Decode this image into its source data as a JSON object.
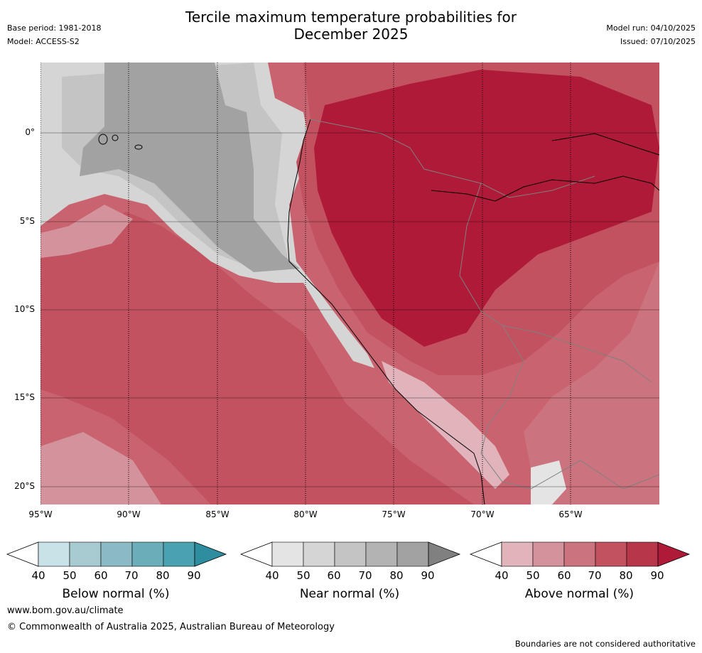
{
  "header": {
    "title_line1": "Tercile maximum temperature probabilities for",
    "title_line2": "December 2025",
    "base_period": "Base period: 1981-2018",
    "model": "Model: ACCESS-S2",
    "model_run": "Model run: 04/10/2025",
    "issued": "Issued: 07/10/2025"
  },
  "map": {
    "latitude_labels": [
      "0°",
      "5°S",
      "10°S",
      "15°S",
      "20°S"
    ],
    "longitude_labels": [
      "95°W",
      "90°W",
      "85°W",
      "80°W",
      "75°W",
      "70°W",
      "65°W"
    ],
    "extent": {
      "lon_min": -95,
      "lon_max": -60,
      "lat_min": -21,
      "lat_max": 4
    }
  },
  "legends": [
    {
      "title": "Below normal (%)",
      "ticks": [
        "40",
        "50",
        "60",
        "70",
        "80",
        "90"
      ],
      "colors": [
        "#ffffff",
        "#c9e2e8",
        "#a8cbd2",
        "#8bb9c4",
        "#6baeba",
        "#4aa2b0",
        "#2e8ea0"
      ]
    },
    {
      "title": "Near normal (%)",
      "ticks": [
        "40",
        "50",
        "60",
        "70",
        "80",
        "90"
      ],
      "colors": [
        "#ffffff",
        "#e4e4e4",
        "#d5d5d5",
        "#c4c4c4",
        "#b3b3b3",
        "#a2a2a2",
        "#808080"
      ]
    },
    {
      "title": "Above normal (%)",
      "ticks": [
        "40",
        "50",
        "60",
        "70",
        "80",
        "90"
      ],
      "colors": [
        "#ffffff",
        "#e0b4ba",
        "#d4939c",
        "#cb737e",
        "#c2525f",
        "#b8364a",
        "#ae1a38"
      ]
    }
  ],
  "footer": {
    "website": "www.bom.gov.au/climate",
    "copyright": "© Commonwealth of Australia 2025, Australian Bureau of Meteorology",
    "disclaimer": "Boundaries are not considered authoritative"
  }
}
